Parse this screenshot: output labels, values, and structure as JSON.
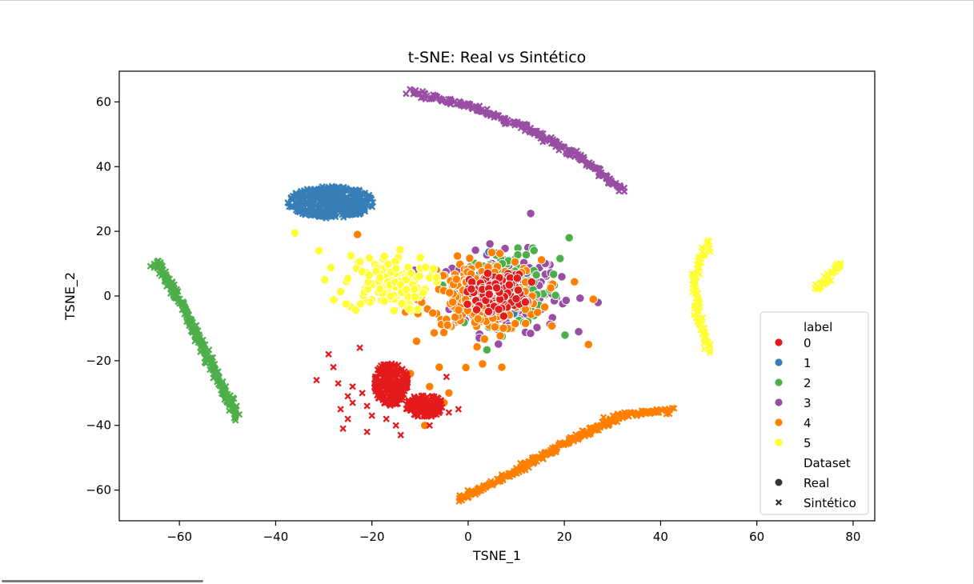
{
  "chart_data": {
    "type": "scatter",
    "title": "t-SNE: Real vs Sintético",
    "xlabel": "TSNE_1",
    "ylabel": "TSNE_2",
    "xlim": [
      -72.5,
      84.5
    ],
    "ylim": [
      -69.5,
      69.5
    ],
    "xticks": [
      -60,
      -40,
      -20,
      0,
      20,
      40,
      60,
      80
    ],
    "yticks": [
      -60,
      -40,
      -20,
      0,
      20,
      40,
      60
    ],
    "xtick_labels": [
      "−60",
      "−40",
      "−20",
      "0",
      "20",
      "40",
      "60",
      "80"
    ],
    "ytick_labels": [
      "−60",
      "−40",
      "−20",
      "0",
      "20",
      "40",
      "60"
    ],
    "grid": false,
    "legend": {
      "position": "lower-right",
      "hue_title": "label",
      "style_title": "Dataset",
      "labels": [
        "0",
        "1",
        "2",
        "3",
        "4",
        "5"
      ],
      "datasets": [
        {
          "name": "Real",
          "marker": "circle"
        },
        {
          "name": "Sintético",
          "marker": "x"
        }
      ]
    },
    "colors": {
      "0": "#e41a1c",
      "1": "#377eb8",
      "2": "#4daf4a",
      "3": "#984ea3",
      "4": "#ff7f00",
      "5": "#ffff33"
    },
    "series": [
      {
        "name": "Real",
        "marker": "circle",
        "clusters": [
          {
            "label": "3",
            "center": [
              8,
              1
            ],
            "spread": [
              10,
              11
            ],
            "count": 230
          },
          {
            "label": "2",
            "center": [
              9,
              2
            ],
            "spread": [
              9,
              10
            ],
            "count": 110
          },
          {
            "label": "1",
            "center": [
              6,
              1
            ],
            "spread": [
              7,
              7
            ],
            "count": 70
          },
          {
            "label": "4",
            "center": [
              3,
              0
            ],
            "spread": [
              11,
              10
            ],
            "count": 260
          },
          {
            "label": "5",
            "center": [
              -17,
              4
            ],
            "spread": [
              8,
              8
            ],
            "count": 130
          },
          {
            "label": "0",
            "center": [
              6,
              1
            ],
            "spread": [
              5,
              5
            ],
            "count": 180
          }
        ],
        "points": [
          {
            "label": "5",
            "x": -36,
            "y": 19.5
          },
          {
            "label": "5",
            "x": -31,
            "y": 14
          },
          {
            "label": "4",
            "x": -23,
            "y": 19
          },
          {
            "label": "4",
            "x": -9,
            "y": -40
          },
          {
            "label": "4",
            "x": -5,
            "y": -33
          },
          {
            "label": "4",
            "x": -4,
            "y": -30
          },
          {
            "label": "4",
            "x": -8,
            "y": -28
          },
          {
            "label": "4",
            "x": -6,
            "y": -22
          },
          {
            "label": "4",
            "x": -12,
            "y": -24
          },
          {
            "label": "4",
            "x": 7,
            "y": -22
          },
          {
            "label": "4",
            "x": 3,
            "y": -21
          },
          {
            "label": "2",
            "x": 21,
            "y": 18
          },
          {
            "label": "3",
            "x": 27,
            "y": -2
          },
          {
            "label": "4",
            "x": 26,
            "y": -1
          },
          {
            "label": "3",
            "x": 13,
            "y": 25.5
          },
          {
            "label": "4",
            "x": 25,
            "y": -15
          }
        ]
      },
      {
        "name": "Sintético",
        "marker": "x",
        "clusters": [
          {
            "label": "1",
            "shape": "blob",
            "center": [
              -28.5,
              29
            ],
            "spread": [
              9,
              5
            ],
            "count": 420
          },
          {
            "label": "0",
            "shape": "blob",
            "center": [
              -16,
              -27
            ],
            "spread": [
              3.5,
              7
            ],
            "count": 220
          },
          {
            "label": "0",
            "shape": "blob",
            "center": [
              -9,
              -34
            ],
            "spread": [
              4,
              3.5
            ],
            "count": 140
          },
          {
            "label": "3",
            "shape": "curve",
            "path": [
              [
                -12,
                63
              ],
              [
                0,
                59
              ],
              [
                12,
                52
              ],
              [
                24,
                42
              ],
              [
                32,
                33
              ]
            ],
            "count": 260
          },
          {
            "label": "2",
            "shape": "curve",
            "path": [
              [
                -65,
                11
              ],
              [
                -60,
                -1
              ],
              [
                -55,
                -16
              ],
              [
                -48,
                -37.5
              ]
            ],
            "count": 260
          },
          {
            "label": "4",
            "shape": "curve",
            "path": [
              [
                -2,
                -63
              ],
              [
                10,
                -54
              ],
              [
                22,
                -44
              ],
              [
                32,
                -37
              ],
              [
                42,
                -35
              ]
            ],
            "count": 300
          },
          {
            "label": "5",
            "shape": "curve",
            "path": [
              [
                50,
                17
              ],
              [
                48,
                12
              ],
              [
                47,
                4
              ],
              [
                48,
                -7
              ],
              [
                50,
                -17
              ]
            ],
            "count": 90
          },
          {
            "label": "5",
            "shape": "curve",
            "path": [
              [
                72,
                2
              ],
              [
                75,
                6
              ],
              [
                77.5,
                10
              ]
            ],
            "count": 40
          }
        ],
        "points": [
          {
            "label": "0",
            "x": -29,
            "y": -18
          },
          {
            "label": "0",
            "x": -28,
            "y": -22
          },
          {
            "label": "0",
            "x": -31.5,
            "y": -26
          },
          {
            "label": "0",
            "x": -27,
            "y": -27
          },
          {
            "label": "0",
            "x": -25,
            "y": -31
          },
          {
            "label": "0",
            "x": -24,
            "y": -28
          },
          {
            "label": "0",
            "x": -26.5,
            "y": -35
          },
          {
            "label": "0",
            "x": -24,
            "y": -33
          },
          {
            "label": "0",
            "x": -21,
            "y": -34
          },
          {
            "label": "0",
            "x": -25,
            "y": -38
          },
          {
            "label": "0",
            "x": -21,
            "y": -42
          },
          {
            "label": "0",
            "x": -26,
            "y": -41
          },
          {
            "label": "0",
            "x": -22.5,
            "y": -16
          },
          {
            "label": "0",
            "x": -20,
            "y": -37
          },
          {
            "label": "0",
            "x": -17,
            "y": -38
          },
          {
            "label": "0",
            "x": -14,
            "y": -43
          },
          {
            "label": "0",
            "x": -15,
            "y": -40
          },
          {
            "label": "0",
            "x": -4,
            "y": -36
          },
          {
            "label": "0",
            "x": -2,
            "y": -35
          },
          {
            "label": "0",
            "x": -4.5,
            "y": -25
          },
          {
            "label": "0",
            "x": -8,
            "y": -40
          },
          {
            "label": "0",
            "x": -22,
            "y": -30
          }
        ]
      }
    ]
  }
}
